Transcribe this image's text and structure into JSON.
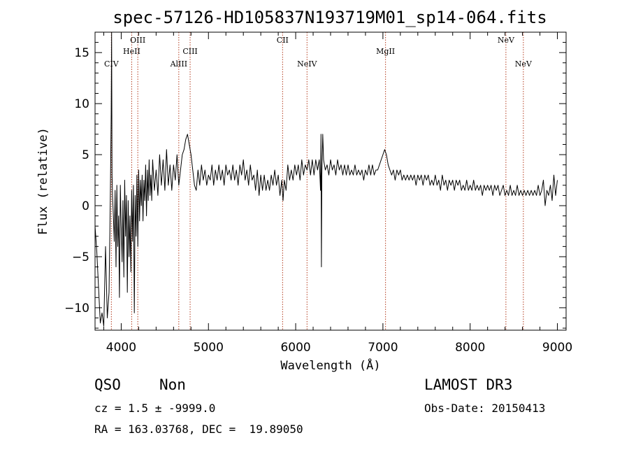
{
  "chart_data": {
    "type": "line",
    "title": "spec-57126-HD105837N193719M01_sp14-064.fits",
    "xlabel": "Wavelength (Å)",
    "ylabel": "Flux (relative)",
    "xlim": [
      3700,
      9100
    ],
    "ylim": [
      -12.2,
      17.0
    ],
    "x_ticks": [
      4000,
      5000,
      6000,
      7000,
      8000,
      9000
    ],
    "y_ticks": [
      -10,
      -5,
      0,
      5,
      10,
      15
    ],
    "x_minor_step": 200,
    "y_minor_step": 1,
    "grid": false,
    "spectral_lines": [
      {
        "name": "CIV",
        "x": 3887,
        "label_row": 3
      },
      {
        "name": "HeII",
        "x": 4120,
        "label_row": 2
      },
      {
        "name": "OIII",
        "x": 4190,
        "label_row": 1
      },
      {
        "name": "AlIII",
        "x": 4660,
        "label_row": 3
      },
      {
        "name": "CIII",
        "x": 4790,
        "label_row": 2
      },
      {
        "name": "CII",
        "x": 5850,
        "label_row": 1
      },
      {
        "name": "NeIV",
        "x": 6130,
        "label_row": 3
      },
      {
        "name": "MgII",
        "x": 7030,
        "label_row": 2
      },
      {
        "name": "NeV",
        "x": 8410,
        "label_row": 1
      },
      {
        "name": "NeV",
        "x": 8610,
        "label_row": 3
      }
    ],
    "series": [
      {
        "name": "flux",
        "points": [
          [
            3700,
            -2.0
          ],
          [
            3720,
            -4.5
          ],
          [
            3740,
            -8.0
          ],
          [
            3760,
            -11.5
          ],
          [
            3780,
            -10.5
          ],
          [
            3800,
            -11.8
          ],
          [
            3820,
            -4.0
          ],
          [
            3840,
            -11.0
          ],
          [
            3860,
            -8.5
          ],
          [
            3875,
            0.5
          ],
          [
            3885,
            9.0
          ],
          [
            3890,
            17.0
          ],
          [
            3895,
            3.0
          ],
          [
            3900,
            1.0
          ],
          [
            3910,
            -1.0
          ],
          [
            3920,
            -3.5
          ],
          [
            3930,
            1.5
          ],
          [
            3940,
            -6.0
          ],
          [
            3950,
            2.0
          ],
          [
            3960,
            -4.0
          ],
          [
            3970,
            -1.0
          ],
          [
            3980,
            -9.0
          ],
          [
            3990,
            2.0
          ],
          [
            4000,
            -2.0
          ],
          [
            4010,
            -5.5
          ],
          [
            4020,
            0.5
          ],
          [
            4030,
            -7.0
          ],
          [
            4040,
            2.5
          ],
          [
            4050,
            -3.0
          ],
          [
            4060,
            1.0
          ],
          [
            4070,
            -8.5
          ],
          [
            4080,
            0.5
          ],
          [
            4090,
            -5.0
          ],
          [
            4100,
            -1.0
          ],
          [
            4110,
            -6.5
          ],
          [
            4120,
            1.5
          ],
          [
            4130,
            -3.5
          ],
          [
            4140,
            2.0
          ],
          [
            4150,
            -10.5
          ],
          [
            4160,
            1.0
          ],
          [
            4170,
            -3.0
          ],
          [
            4180,
            3.0
          ],
          [
            4190,
            -4.0
          ],
          [
            4200,
            3.5
          ],
          [
            4210,
            -1.5
          ],
          [
            4220,
            2.5
          ],
          [
            4230,
            0.0
          ],
          [
            4240,
            3.0
          ],
          [
            4250,
            -1.5
          ],
          [
            4260,
            2.5
          ],
          [
            4270,
            0.5
          ],
          [
            4280,
            4.0
          ],
          [
            4290,
            -1.0
          ],
          [
            4300,
            3.5
          ],
          [
            4310,
            0.5
          ],
          [
            4320,
            4.5
          ],
          [
            4330,
            1.0
          ],
          [
            4340,
            3.0
          ],
          [
            4350,
            0.5
          ],
          [
            4360,
            4.5
          ],
          [
            4380,
            1.5
          ],
          [
            4400,
            3.5
          ],
          [
            4420,
            1.0
          ],
          [
            4440,
            5.0
          ],
          [
            4460,
            2.0
          ],
          [
            4480,
            4.5
          ],
          [
            4500,
            1.5
          ],
          [
            4520,
            5.5
          ],
          [
            4540,
            2.0
          ],
          [
            4560,
            4.0
          ],
          [
            4580,
            1.5
          ],
          [
            4600,
            4.0
          ],
          [
            4620,
            2.5
          ],
          [
            4640,
            5.0
          ],
          [
            4660,
            2.0
          ],
          [
            4680,
            3.5
          ],
          [
            4700,
            5.0
          ],
          [
            4720,
            5.5
          ],
          [
            4740,
            6.5
          ],
          [
            4760,
            7.0
          ],
          [
            4780,
            6.0
          ],
          [
            4800,
            5.0
          ],
          [
            4820,
            3.5
          ],
          [
            4840,
            2.0
          ],
          [
            4860,
            1.5
          ],
          [
            4880,
            3.5
          ],
          [
            4900,
            2.0
          ],
          [
            4920,
            4.0
          ],
          [
            4940,
            2.5
          ],
          [
            4960,
            3.5
          ],
          [
            4980,
            2.0
          ],
          [
            5000,
            3.0
          ],
          [
            5020,
            2.5
          ],
          [
            5040,
            4.0
          ],
          [
            5060,
            2.0
          ],
          [
            5080,
            3.5
          ],
          [
            5100,
            2.5
          ],
          [
            5120,
            4.0
          ],
          [
            5140,
            2.5
          ],
          [
            5160,
            3.5
          ],
          [
            5180,
            2.0
          ],
          [
            5200,
            4.0
          ],
          [
            5220,
            3.0
          ],
          [
            5240,
            3.5
          ],
          [
            5260,
            2.5
          ],
          [
            5280,
            4.0
          ],
          [
            5300,
            2.5
          ],
          [
            5320,
            3.5
          ],
          [
            5340,
            2.0
          ],
          [
            5360,
            4.0
          ],
          [
            5380,
            3.0
          ],
          [
            5400,
            4.5
          ],
          [
            5420,
            2.5
          ],
          [
            5440,
            3.5
          ],
          [
            5460,
            2.0
          ],
          [
            5480,
            4.0
          ],
          [
            5500,
            2.5
          ],
          [
            5520,
            3.0
          ],
          [
            5540,
            1.5
          ],
          [
            5560,
            3.5
          ],
          [
            5580,
            1.0
          ],
          [
            5600,
            3.0
          ],
          [
            5620,
            1.5
          ],
          [
            5640,
            3.0
          ],
          [
            5660,
            1.5
          ],
          [
            5680,
            2.5
          ],
          [
            5700,
            1.5
          ],
          [
            5720,
            3.0
          ],
          [
            5740,
            2.0
          ],
          [
            5760,
            3.5
          ],
          [
            5780,
            2.0
          ],
          [
            5800,
            3.0
          ],
          [
            5820,
            1.0
          ],
          [
            5840,
            2.5
          ],
          [
            5855,
            0.5
          ],
          [
            5870,
            2.5
          ],
          [
            5890,
            1.5
          ],
          [
            5910,
            4.0
          ],
          [
            5930,
            2.5
          ],
          [
            5950,
            3.5
          ],
          [
            5970,
            2.5
          ],
          [
            5990,
            4.0
          ],
          [
            6010,
            3.0
          ],
          [
            6030,
            4.0
          ],
          [
            6050,
            2.5
          ],
          [
            6070,
            4.5
          ],
          [
            6090,
            3.0
          ],
          [
            6110,
            4.0
          ],
          [
            6130,
            3.5
          ],
          [
            6150,
            4.5
          ],
          [
            6170,
            3.0
          ],
          [
            6190,
            4.5
          ],
          [
            6210,
            3.0
          ],
          [
            6230,
            4.5
          ],
          [
            6250,
            3.5
          ],
          [
            6270,
            4.5
          ],
          [
            6285,
            1.5
          ],
          [
            6290,
            7.0
          ],
          [
            6295,
            -6.0
          ],
          [
            6300,
            3.0
          ],
          [
            6310,
            7.0
          ],
          [
            6320,
            4.5
          ],
          [
            6340,
            3.5
          ],
          [
            6360,
            4.0
          ],
          [
            6380,
            3.0
          ],
          [
            6400,
            4.5
          ],
          [
            6420,
            3.5
          ],
          [
            6440,
            4.0
          ],
          [
            6460,
            3.0
          ],
          [
            6480,
            4.5
          ],
          [
            6500,
            3.5
          ],
          [
            6520,
            4.0
          ],
          [
            6540,
            3.0
          ],
          [
            6560,
            4.0
          ],
          [
            6580,
            3.0
          ],
          [
            6600,
            4.0
          ],
          [
            6620,
            3.0
          ],
          [
            6640,
            3.5
          ],
          [
            6660,
            3.0
          ],
          [
            6680,
            4.0
          ],
          [
            6700,
            3.0
          ],
          [
            6720,
            3.5
          ],
          [
            6740,
            3.0
          ],
          [
            6760,
            3.5
          ],
          [
            6780,
            2.5
          ],
          [
            6800,
            3.5
          ],
          [
            6820,
            3.0
          ],
          [
            6840,
            4.0
          ],
          [
            6860,
            3.0
          ],
          [
            6880,
            4.0
          ],
          [
            6900,
            3.0
          ],
          [
            6920,
            3.5
          ],
          [
            6940,
            3.5
          ],
          [
            6960,
            4.0
          ],
          [
            6980,
            4.5
          ],
          [
            7000,
            5.0
          ],
          [
            7020,
            5.5
          ],
          [
            7040,
            5.0
          ],
          [
            7060,
            4.0
          ],
          [
            7080,
            3.5
          ],
          [
            7100,
            3.0
          ],
          [
            7120,
            3.5
          ],
          [
            7140,
            2.5
          ],
          [
            7160,
            3.5
          ],
          [
            7180,
            3.0
          ],
          [
            7200,
            3.5
          ],
          [
            7220,
            2.5
          ],
          [
            7240,
            3.0
          ],
          [
            7260,
            2.5
          ],
          [
            7280,
            3.0
          ],
          [
            7300,
            2.5
          ],
          [
            7320,
            3.0
          ],
          [
            7340,
            2.5
          ],
          [
            7360,
            3.0
          ],
          [
            7380,
            2.0
          ],
          [
            7400,
            3.0
          ],
          [
            7420,
            2.5
          ],
          [
            7440,
            3.0
          ],
          [
            7460,
            2.0
          ],
          [
            7480,
            3.0
          ],
          [
            7500,
            2.5
          ],
          [
            7520,
            3.0
          ],
          [
            7540,
            2.0
          ],
          [
            7560,
            2.5
          ],
          [
            7580,
            2.0
          ],
          [
            7600,
            3.0
          ],
          [
            7620,
            2.0
          ],
          [
            7640,
            2.5
          ],
          [
            7660,
            1.5
          ],
          [
            7680,
            3.0
          ],
          [
            7700,
            2.0
          ],
          [
            7720,
            2.5
          ],
          [
            7740,
            1.5
          ],
          [
            7760,
            2.5
          ],
          [
            7780,
            2.0
          ],
          [
            7800,
            2.5
          ],
          [
            7820,
            1.5
          ],
          [
            7840,
            2.5
          ],
          [
            7860,
            2.0
          ],
          [
            7880,
            2.5
          ],
          [
            7900,
            1.5
          ],
          [
            7920,
            2.0
          ],
          [
            7940,
            1.5
          ],
          [
            7960,
            2.5
          ],
          [
            7980,
            1.5
          ],
          [
            8000,
            2.0
          ],
          [
            8020,
            1.5
          ],
          [
            8040,
            2.5
          ],
          [
            8060,
            1.5
          ],
          [
            8080,
            2.0
          ],
          [
            8100,
            1.5
          ],
          [
            8120,
            2.0
          ],
          [
            8140,
            1.0
          ],
          [
            8160,
            2.0
          ],
          [
            8180,
            1.5
          ],
          [
            8200,
            2.0
          ],
          [
            8220,
            1.5
          ],
          [
            8240,
            2.0
          ],
          [
            8260,
            1.0
          ],
          [
            8280,
            2.0
          ],
          [
            8300,
            1.5
          ],
          [
            8320,
            2.0
          ],
          [
            8340,
            1.0
          ],
          [
            8360,
            1.5
          ],
          [
            8380,
            2.0
          ],
          [
            8400,
            1.0
          ],
          [
            8420,
            1.5
          ],
          [
            8440,
            1.0
          ],
          [
            8460,
            2.0
          ],
          [
            8480,
            1.0
          ],
          [
            8500,
            1.5
          ],
          [
            8520,
            1.0
          ],
          [
            8540,
            2.0
          ],
          [
            8560,
            1.0
          ],
          [
            8580,
            1.5
          ],
          [
            8600,
            1.0
          ],
          [
            8620,
            1.5
          ],
          [
            8640,
            1.0
          ],
          [
            8660,
            1.5
          ],
          [
            8680,
            1.0
          ],
          [
            8700,
            1.5
          ],
          [
            8720,
            1.0
          ],
          [
            8740,
            1.5
          ],
          [
            8760,
            1.0
          ],
          [
            8780,
            2.0
          ],
          [
            8800,
            1.0
          ],
          [
            8820,
            1.5
          ],
          [
            8840,
            2.5
          ],
          [
            8860,
            0.0
          ],
          [
            8880,
            1.5
          ],
          [
            8900,
            1.0
          ],
          [
            8920,
            2.0
          ],
          [
            8940,
            0.5
          ],
          [
            8960,
            3.0
          ],
          [
            8980,
            1.0
          ],
          [
            9000,
            2.5
          ]
        ]
      }
    ]
  },
  "info": {
    "object_class": "QSO",
    "subclass": "Non",
    "redshift": "cz = 1.5 ± -9999.0",
    "coords": "RA = 163.03768, DEC =  19.89050",
    "survey": "LAMOST DR3",
    "obs_date": "Obs-Date: 20150413"
  }
}
